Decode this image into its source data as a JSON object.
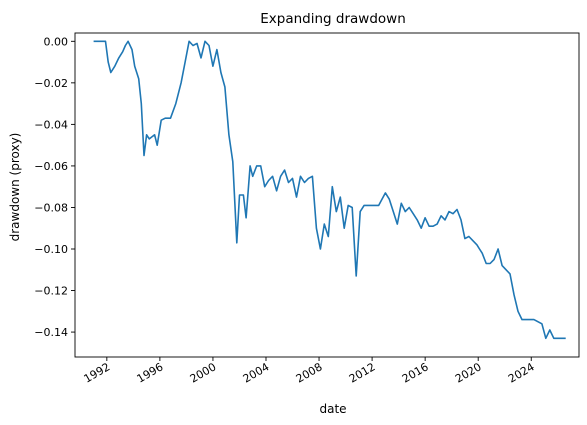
{
  "chart_data": {
    "type": "line",
    "title": "Expanding drawdown",
    "xlabel": "date",
    "ylabel": "drawdown (proxy)",
    "xlim": [
      1989.6,
      2027.6
    ],
    "ylim": [
      -0.152,
      0.004
    ],
    "x_ticks": [
      1992,
      1996,
      2000,
      2004,
      2008,
      2012,
      2016,
      2020,
      2024
    ],
    "y_ticks": [
      0.0,
      -0.02,
      -0.04,
      -0.06,
      -0.08,
      -0.1,
      -0.12,
      -0.14
    ],
    "y_tick_labels": [
      "0.00",
      "−0.02",
      "−0.04",
      "−0.06",
      "−0.08",
      "−0.10",
      "−0.12",
      "−0.14"
    ],
    "grid": false,
    "color": "#1f77b4",
    "series": [
      {
        "x": [
          1991.0,
          1991.9,
          1992.1,
          1992.3,
          1992.6,
          1992.9,
          1993.2,
          1993.4,
          1993.6,
          1993.9,
          1994.1,
          1994.4,
          1994.6,
          1994.8,
          1995.0,
          1995.2,
          1995.6,
          1995.8,
          1996.1,
          1996.4,
          1996.8,
          1997.2,
          1997.6,
          1997.9,
          1998.2,
          1998.5,
          1998.8,
          1999.1,
          1999.4,
          1999.7,
          2000.0,
          2000.3,
          2000.6,
          2000.9,
          2001.2,
          2001.5,
          2001.8,
          2002.0,
          2002.3,
          2002.5,
          2002.8,
          2003.0,
          2003.3,
          2003.6,
          2003.9,
          2004.2,
          2004.5,
          2004.8,
          2005.1,
          2005.4,
          2005.7,
          2006.0,
          2006.3,
          2006.6,
          2006.9,
          2007.2,
          2007.5,
          2007.8,
          2008.1,
          2008.4,
          2008.7,
          2009.0,
          2009.3,
          2009.6,
          2009.9,
          2010.2,
          2010.5,
          2010.8,
          2011.1,
          2011.4,
          2011.7,
          2012.0,
          2012.5,
          2013.0,
          2013.3,
          2013.6,
          2013.9,
          2014.2,
          2014.5,
          2014.8,
          2015.1,
          2015.4,
          2015.7,
          2016.0,
          2016.3,
          2016.6,
          2016.9,
          2017.2,
          2017.5,
          2017.8,
          2018.1,
          2018.4,
          2018.7,
          2019.0,
          2019.3,
          2019.6,
          2019.9,
          2020.1,
          2020.3,
          2020.6,
          2020.9,
          2021.2,
          2021.5,
          2021.8,
          2022.1,
          2022.4,
          2022.7,
          2023.0,
          2023.3,
          2023.6,
          2023.9,
          2024.2,
          2024.5,
          2024.8,
          2025.1,
          2025.4,
          2025.7,
          2026.0,
          2026.3,
          2026.6
        ],
        "y": [
          0.0,
          0.0,
          -0.01,
          -0.015,
          -0.012,
          -0.008,
          -0.005,
          -0.002,
          0.0,
          -0.004,
          -0.012,
          -0.018,
          -0.03,
          -0.055,
          -0.045,
          -0.047,
          -0.045,
          -0.05,
          -0.038,
          -0.037,
          -0.037,
          -0.03,
          -0.02,
          -0.01,
          0.0,
          -0.002,
          -0.001,
          -0.008,
          0.0,
          -0.002,
          -0.012,
          -0.004,
          -0.015,
          -0.022,
          -0.045,
          -0.058,
          -0.097,
          -0.074,
          -0.074,
          -0.085,
          -0.06,
          -0.065,
          -0.06,
          -0.06,
          -0.07,
          -0.067,
          -0.065,
          -0.072,
          -0.065,
          -0.062,
          -0.068,
          -0.066,
          -0.075,
          -0.065,
          -0.068,
          -0.066,
          -0.065,
          -0.09,
          -0.1,
          -0.088,
          -0.094,
          -0.07,
          -0.082,
          -0.075,
          -0.09,
          -0.079,
          -0.08,
          -0.113,
          -0.082,
          -0.079,
          -0.079,
          -0.079,
          -0.079,
          -0.073,
          -0.076,
          -0.082,
          -0.088,
          -0.078,
          -0.082,
          -0.08,
          -0.083,
          -0.086,
          -0.09,
          -0.085,
          -0.089,
          -0.089,
          -0.088,
          -0.084,
          -0.086,
          -0.082,
          -0.083,
          -0.081,
          -0.086,
          -0.095,
          -0.094,
          -0.096,
          -0.098,
          -0.1,
          -0.102,
          -0.107,
          -0.107,
          -0.105,
          -0.1,
          -0.108,
          -0.11,
          -0.112,
          -0.122,
          -0.13,
          -0.134,
          -0.134,
          -0.134,
          -0.134,
          -0.135,
          -0.136,
          -0.143,
          -0.139,
          -0.143,
          -0.143,
          -0.143,
          -0.143
        ]
      }
    ]
  }
}
